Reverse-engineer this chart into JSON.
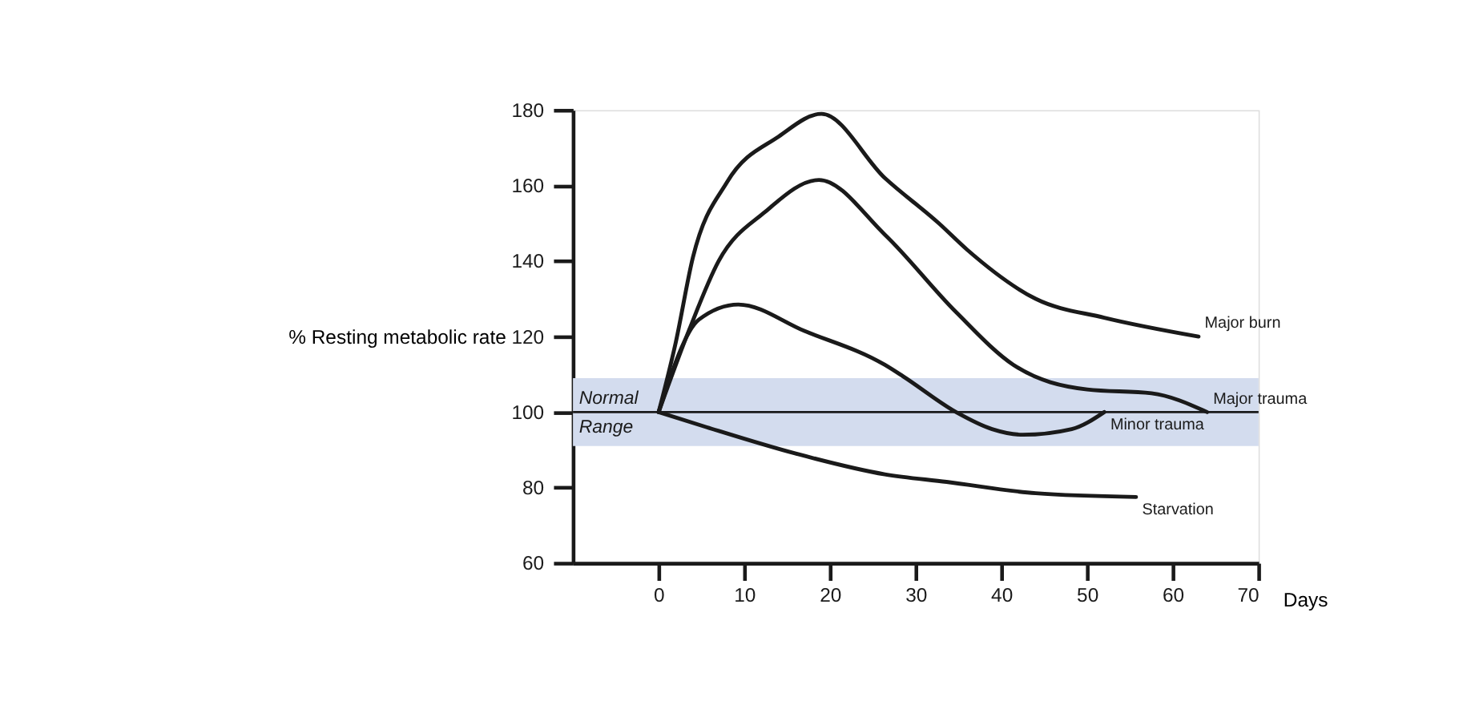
{
  "chart_data": {
    "type": "line",
    "ylabel": "% Resting metabolic rate",
    "xlabel": "Days",
    "xlim": [
      -10,
      70
    ],
    "xticks": [
      0,
      10,
      20,
      30,
      40,
      50,
      60,
      70
    ],
    "ylim": [
      60,
      180
    ],
    "yticks": [
      60,
      80,
      100,
      120,
      140,
      160,
      180
    ],
    "grid": false,
    "legend": false,
    "marker": "none",
    "line_style": "solid",
    "series": [
      {
        "name": "Major burn",
        "color": "#1a1a1a",
        "x": [
          0,
          2,
          4,
          8,
          14,
          19,
          26.4,
          32.7,
          36,
          44,
          52,
          63
        ],
        "values": [
          100,
          118.5,
          141,
          161,
          173,
          179,
          162,
          150,
          143,
          130,
          125,
          120
        ]
      },
      {
        "name": "Minor trauma",
        "color": "#1a1a1a",
        "x": [
          0,
          4.7,
          9.3,
          17,
          26.4,
          28.5,
          34.7,
          38.9,
          42.5,
          48.2,
          52
        ],
        "values": [
          100,
          124.5,
          128.5,
          121.5,
          112.5,
          109.5,
          100,
          95.5,
          94,
          95.5,
          100
        ]
      },
      {
        "name": "Major trauma",
        "color": "#1a1a1a",
        "x": [
          0,
          3.6,
          7,
          12.4,
          18.7,
          26.4,
          34.7,
          41.4,
          50,
          57.5,
          64
        ],
        "values": [
          100,
          122,
          140,
          153,
          161.5,
          147,
          126.5,
          112.5,
          106,
          105,
          100
        ]
      },
      {
        "name": "Starvation",
        "color": "#1a1a1a",
        "x": [
          0,
          5.6,
          16,
          26.4,
          33.6,
          44,
          55.7
        ],
        "values": [
          100,
          96,
          89,
          83.5,
          81.5,
          78.5,
          77.5
        ]
      }
    ],
    "bands": [
      {
        "axis": "y",
        "from": 91,
        "to": 109,
        "label": "Normal Range",
        "color": "#d3dcee"
      }
    ],
    "ref_lines": [
      {
        "axis": "y",
        "value": 100,
        "color": "#1a1a1a",
        "line_style": "solid"
      }
    ]
  }
}
